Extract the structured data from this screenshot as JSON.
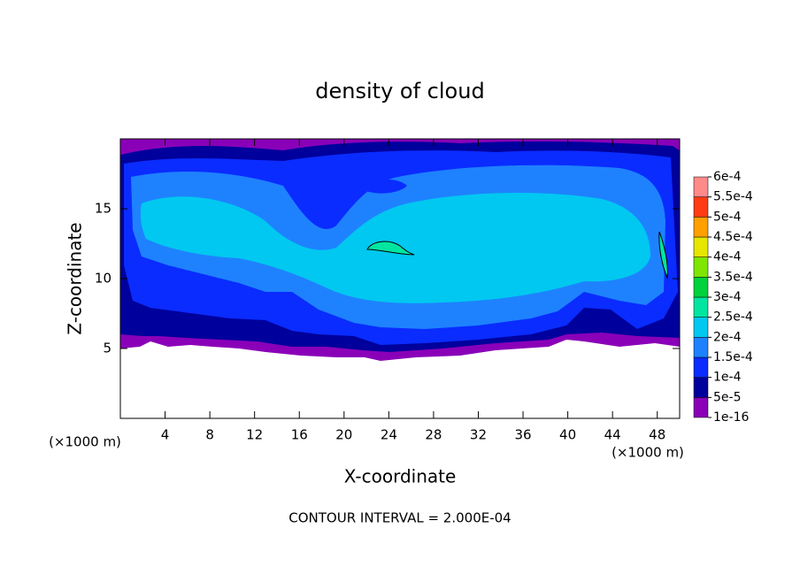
{
  "chart_data": {
    "type": "contour",
    "title": "density of cloud",
    "x_label": "X-coordinate",
    "y_label": "Z-coordinate",
    "x_unit": "(×1000 m)",
    "annotation": "CONTOUR INTERVAL = 2.000E-04",
    "xlim": [
      0,
      50
    ],
    "ylim": [
      0,
      20
    ],
    "xticks": [
      4,
      8,
      12,
      16,
      20,
      24,
      28,
      32,
      36,
      40,
      44,
      48
    ],
    "yticks": [
      5,
      10,
      15
    ],
    "colorbar": {
      "levels": [
        {
          "value": 1e-16,
          "label": "1e-16"
        },
        {
          "value": 5e-05,
          "label": "5e-5"
        },
        {
          "value": 0.0001,
          "label": "1e-4"
        },
        {
          "value": 0.00015,
          "label": "1.5e-4"
        },
        {
          "value": 0.0002,
          "label": "2e-4"
        },
        {
          "value": 0.00025,
          "label": "2.5e-4"
        },
        {
          "value": 0.0003,
          "label": "3e-4"
        },
        {
          "value": 0.00035,
          "label": "3.5e-4"
        },
        {
          "value": 0.0004,
          "label": "4e-4"
        },
        {
          "value": 0.00045,
          "label": "4.5e-4"
        },
        {
          "value": 0.0005,
          "label": "5e-4"
        },
        {
          "value": 0.00055,
          "label": "5.5e-4"
        },
        {
          "value": 0.0006,
          "label": "6e-4"
        }
      ],
      "colors": [
        "#8a00b8",
        "#00009c",
        "#0a2cff",
        "#1e82ff",
        "#00c8f0",
        "#00e6a0",
        "#00d23c",
        "#7ee600",
        "#e6e600",
        "#ffa000",
        "#ff3c14",
        "#ff8a8a"
      ]
    }
  }
}
